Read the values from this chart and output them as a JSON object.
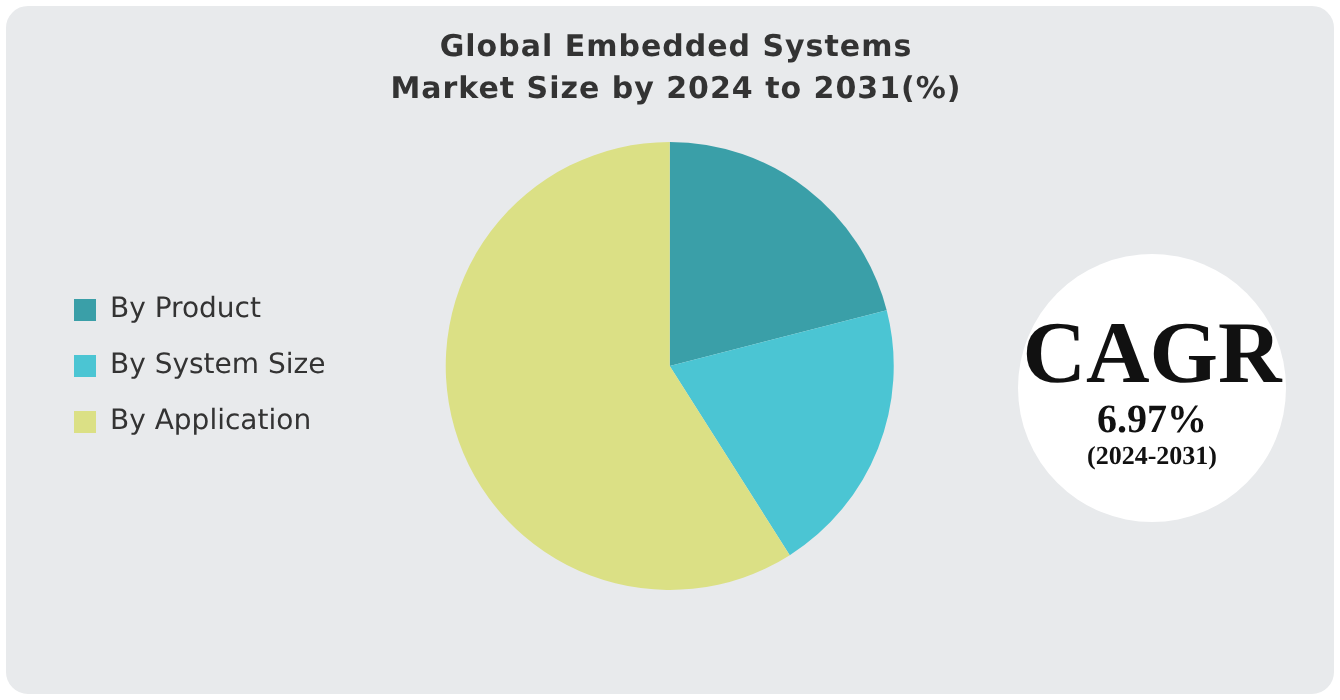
{
  "chart_data": {
    "type": "pie",
    "title": "Global Embedded Systems Market Size by 2024 to 2031(%)",
    "categories": [
      "By Product",
      "By System Size",
      "By Application"
    ],
    "values": [
      21,
      20,
      59
    ],
    "colors": [
      "#3a9fa8",
      "#4bc5d3",
      "#dbe085"
    ],
    "legend": "left",
    "annotations": [
      "CAGR",
      "6.97%",
      "(2024-2031)"
    ]
  }
}
